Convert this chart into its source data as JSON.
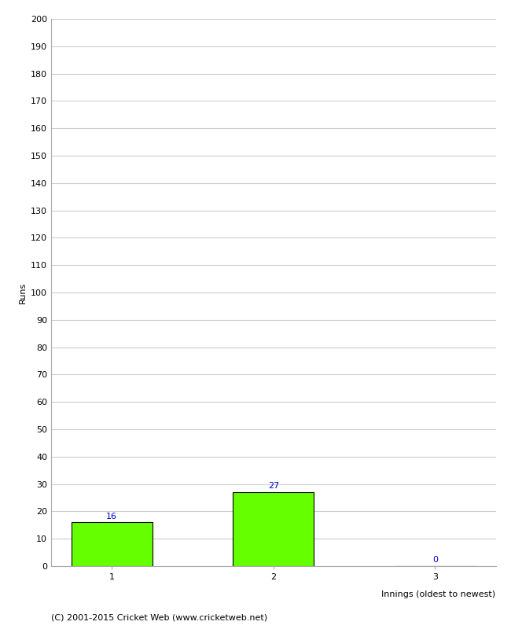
{
  "categories": [
    "1",
    "2",
    "3"
  ],
  "values": [
    16,
    27,
    0
  ],
  "bar_color": "#66ff00",
  "bar_edgecolor": "#000000",
  "ylabel": "Runs",
  "xlabel": "Innings (oldest to newest)",
  "ylim": [
    0,
    200
  ],
  "yticks": [
    0,
    10,
    20,
    30,
    40,
    50,
    60,
    70,
    80,
    90,
    100,
    110,
    120,
    130,
    140,
    150,
    160,
    170,
    180,
    190,
    200
  ],
  "annotation_color": "#0000cc",
  "annotation_fontsize": 8,
  "axis_label_fontsize": 8,
  "tick_fontsize": 8,
  "xlabel_fontsize": 8,
  "footer_text": "(C) 2001-2015 Cricket Web (www.cricketweb.net)",
  "footer_fontsize": 8,
  "background_color": "#ffffff",
  "grid_color": "#cccccc"
}
